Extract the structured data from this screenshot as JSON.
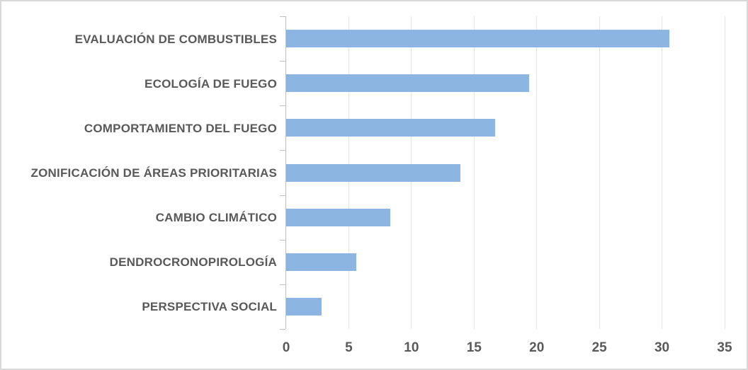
{
  "chart_data": {
    "type": "bar",
    "orientation": "horizontal",
    "title": "",
    "xlabel": "",
    "ylabel": "",
    "categories": [
      "EVALUACIÓN DE COMBUSTIBLES",
      "ECOLOGÍA DE FUEGO",
      "COMPORTAMIENTO DEL FUEGO",
      "ZONIFICACIÓN DE ÁREAS PRIORITARIAS",
      "CAMBIO CLIMÁTICO",
      "DENDROCRONOPIROLOGÍA",
      "PERSPECTIVA SOCIAL"
    ],
    "values": [
      30.6,
      19.4,
      16.7,
      13.9,
      8.3,
      5.6,
      2.8
    ],
    "xlim": [
      0,
      35
    ],
    "xticks": [
      0,
      5,
      10,
      15,
      20,
      25,
      30,
      35
    ],
    "grid": "vertical",
    "legend": "none",
    "colors": {
      "bar": "#8cb5e1",
      "axis_line": "#bfbfbf",
      "gridline": "#e4e4e4",
      "text": "#595959",
      "chart_border": "#d9d9d9"
    }
  }
}
